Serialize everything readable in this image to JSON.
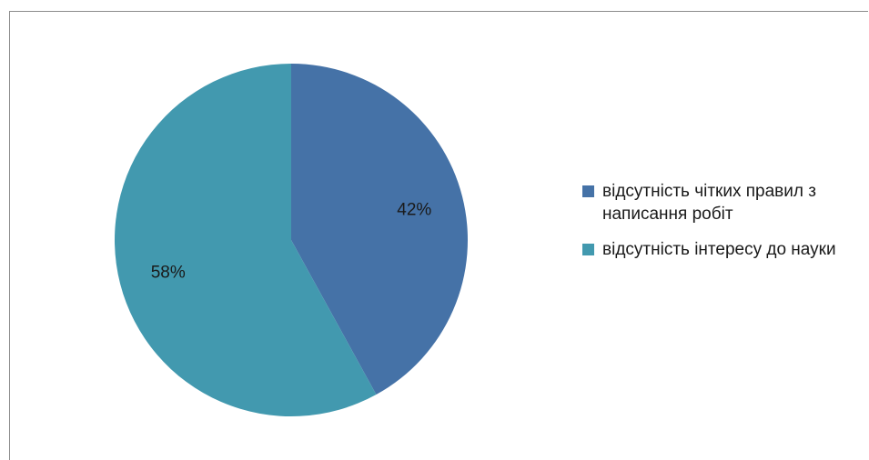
{
  "chart_data": {
    "type": "pie",
    "slices": [
      {
        "label": "відсутність чітких правил з написання робіт",
        "value": 42,
        "display": "42%",
        "color": "#4572a7"
      },
      {
        "label": "відсутність інтересу до науки",
        "value": 58,
        "display": "58%",
        "color": "#4299af"
      }
    ],
    "start_angle_deg": 0,
    "direction": "clockwise",
    "legend_position": "right"
  }
}
